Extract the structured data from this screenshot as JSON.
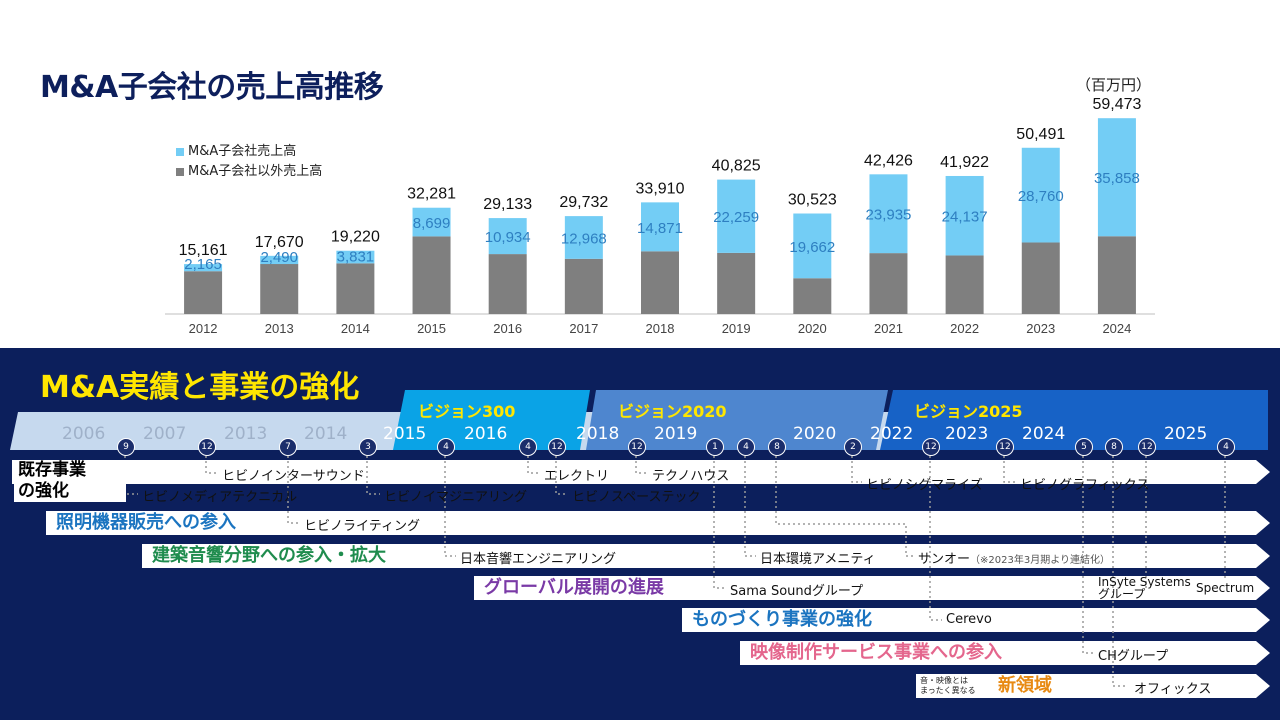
{
  "top": {
    "title": "M&A子会社の売上高推移",
    "unit": "（百万円）"
  },
  "chart_data": {
    "type": "bar",
    "stacked": true,
    "title": "M&A子会社の売上高推移",
    "unit_label": "（百万円）",
    "categories": [
      "2012",
      "2013",
      "2014",
      "2015",
      "2016",
      "2017",
      "2018",
      "2019",
      "2020",
      "2021",
      "2022",
      "2023",
      "2024"
    ],
    "series": [
      {
        "name": "M&A子会社以外売上高",
        "color": "#7f7f7f",
        "values": [
          12996,
          15180,
          15389,
          23582,
          18199,
          16764,
          19039,
          18566,
          10861,
          18491,
          17785,
          21731,
          23615
        ]
      },
      {
        "name": "M&A子会社売上高",
        "color": "#73cdf5",
        "values": [
          2165,
          2490,
          3831,
          8699,
          10934,
          12968,
          14871,
          22259,
          19662,
          23935,
          24137,
          28760,
          35858
        ]
      }
    ],
    "segment_labels": [
      "2,165",
      "2,490",
      "3,831",
      "8,699",
      "10,934",
      "12,968",
      "14,871",
      "22,259",
      "19,662",
      "23,935",
      "24,137",
      "28,760",
      "35,858"
    ],
    "total_labels": [
      "15,161",
      "17,670",
      "19,220",
      "32,281",
      "29,133",
      "29,732",
      "33,910",
      "40,825",
      "30,523",
      "42,426",
      "41,922",
      "50,491",
      "59,473"
    ],
    "ylim": [
      0,
      65000
    ],
    "legend": [
      "M&A子会社売上高",
      "M&A子会社以外売上高"
    ]
  },
  "bottom": {
    "title": "M&A実績と事業の強化",
    "eras": [
      "ビジョン300",
      "ビジョン2020",
      "ビジョン2025"
    ],
    "years": [
      "2006",
      "2007",
      "2013",
      "2014",
      "2015",
      "2016",
      "2018",
      "2019",
      "2020",
      "2022",
      "2023",
      "2024",
      "2025"
    ],
    "circles": [
      "9",
      "12",
      "7",
      "3",
      "4",
      "4",
      "12",
      "12",
      "1",
      "4",
      "8",
      "2",
      "12",
      "12",
      "5",
      "8",
      "12",
      "4"
    ],
    "categories": {
      "existing": "既存事業\nの強化",
      "lighting": "照明機器販売への参入",
      "architecture": "建築音響分野への参入・拡大",
      "global": "グローバル展開の進展",
      "manufacturing": "ものづくり事業の強化",
      "video": "映像制作サービス事業への参入",
      "new_note": "音・映像とは\nまったく異なる",
      "new": "新領域"
    },
    "companies": {
      "media": "ヒビノメディアテクニカル",
      "inter": "ヒビノインターサウンド",
      "lighting": "ヒビノライティング",
      "imagineering": "ヒビノイマジニアリング",
      "nihon_onkyo": "日本音響エンジニアリング",
      "electori": "エレクトリ",
      "space": "ヒビノスペーステック",
      "techno": "テクノハウス",
      "sama": "Sama Soundグループ",
      "kankyo": "日本環境アメニティ",
      "sigma": "ヒビノシグマライズ",
      "sanoh": "サンオー",
      "sanoh_note": "（※2023年3月期より連結化）",
      "cerevo": "Cerevo",
      "graphics": "ヒビノグラフィックス",
      "insyte": "InSyte Systems\nグループ",
      "spectrum": "Spectrum",
      "ch": "CHグループ",
      "officx": "オフィックス"
    }
  }
}
